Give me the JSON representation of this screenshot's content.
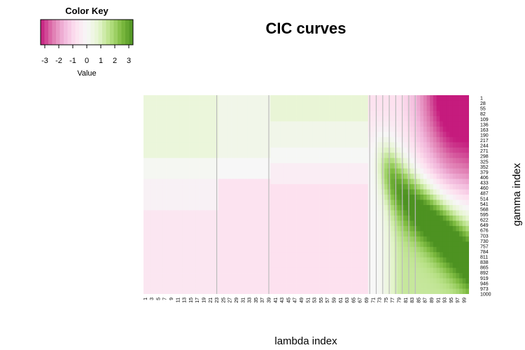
{
  "chart_data": {
    "type": "heatmap",
    "title": "CIC curves",
    "xlabel": "lambda index",
    "ylabel": "gamma index",
    "color_key": {
      "title": "Color Key",
      "label": "Value",
      "range": [
        -3.3,
        3.3
      ],
      "ticks": [
        "-3",
        "-2",
        "-1",
        "0",
        "1",
        "2",
        "3"
      ],
      "palette": [
        "#c51b7d",
        "#de77ae",
        "#f1b6da",
        "#fde0ef",
        "#f7f7f7",
        "#e6f5d0",
        "#b8e186",
        "#7fbc41",
        "#4d9221"
      ]
    },
    "x_count": 100,
    "x_tick_labels": [
      "1",
      "3",
      "5",
      "7",
      "9",
      "11",
      "13",
      "15",
      "17",
      "19",
      "21",
      "23",
      "25",
      "27",
      "29",
      "31",
      "33",
      "35",
      "37",
      "39",
      "41",
      "43",
      "45",
      "47",
      "49",
      "51",
      "53",
      "55",
      "57",
      "59",
      "61",
      "63",
      "65",
      "67",
      "69",
      "71",
      "73",
      "75",
      "77",
      "79",
      "81",
      "83",
      "85",
      "87",
      "89",
      "91",
      "93",
      "95",
      "97",
      "99"
    ],
    "y_range": [
      1,
      1000
    ],
    "y_tick_labels": [
      "1",
      "28",
      "55",
      "82",
      "109",
      "136",
      "163",
      "190",
      "217",
      "244",
      "271",
      "298",
      "325",
      "352",
      "379",
      "406",
      "433",
      "460",
      "487",
      "514",
      "541",
      "568",
      "595",
      "622",
      "649",
      "676",
      "703",
      "730",
      "757",
      "784",
      "811",
      "838",
      "865",
      "892",
      "919",
      "946",
      "973",
      "1000"
    ],
    "separator_columns": [
      23,
      39,
      70,
      72,
      74,
      76,
      78,
      80,
      82,
      84
    ],
    "separator_color": "#bbbbbb"
  }
}
